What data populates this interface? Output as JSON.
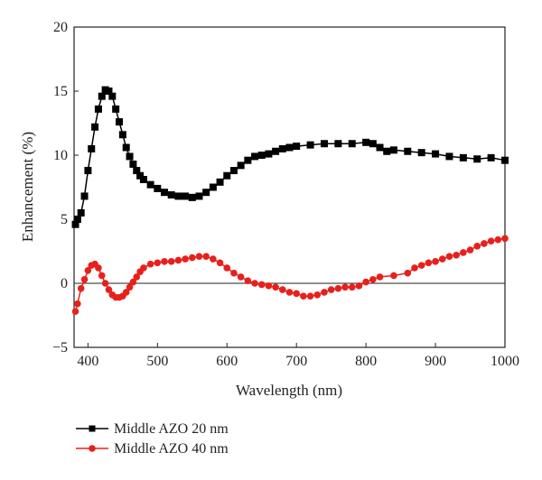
{
  "chart_data": {
    "type": "scatter",
    "xlabel": "Wavelength (nm)",
    "ylabel": "Enhancement (%)",
    "xlim": [
      380,
      1000
    ],
    "ylim": [
      -5,
      20
    ],
    "x_ticks": [
      400,
      500,
      600,
      700,
      800,
      900,
      1000
    ],
    "y_ticks": [
      -5,
      0,
      5,
      10,
      15,
      20
    ],
    "grid": false,
    "reference_line_y": 0,
    "legend_position": "bottom-left, below plot",
    "series": [
      {
        "name": "Middle AZO 20 nm",
        "color": "#000000",
        "marker": "square",
        "points": [
          [
            382,
            4.6
          ],
          [
            385,
            5.0
          ],
          [
            390,
            5.5
          ],
          [
            395,
            6.8
          ],
          [
            400,
            8.8
          ],
          [
            405,
            10.5
          ],
          [
            410,
            12.2
          ],
          [
            415,
            13.6
          ],
          [
            420,
            14.6
          ],
          [
            425,
            15.1
          ],
          [
            430,
            15.0
          ],
          [
            435,
            14.6
          ],
          [
            440,
            13.6
          ],
          [
            445,
            12.6
          ],
          [
            450,
            11.6
          ],
          [
            455,
            10.6
          ],
          [
            460,
            9.9
          ],
          [
            465,
            9.3
          ],
          [
            470,
            8.8
          ],
          [
            475,
            8.4
          ],
          [
            480,
            8.1
          ],
          [
            490,
            7.7
          ],
          [
            500,
            7.4
          ],
          [
            510,
            7.1
          ],
          [
            520,
            6.9
          ],
          [
            530,
            6.8
          ],
          [
            540,
            6.8
          ],
          [
            550,
            6.7
          ],
          [
            560,
            6.8
          ],
          [
            570,
            7.1
          ],
          [
            580,
            7.5
          ],
          [
            590,
            7.9
          ],
          [
            600,
            8.4
          ],
          [
            610,
            8.8
          ],
          [
            620,
            9.2
          ],
          [
            630,
            9.6
          ],
          [
            640,
            9.9
          ],
          [
            650,
            10.0
          ],
          [
            660,
            10.1
          ],
          [
            670,
            10.3
          ],
          [
            680,
            10.5
          ],
          [
            690,
            10.6
          ],
          [
            700,
            10.7
          ],
          [
            720,
            10.8
          ],
          [
            740,
            10.9
          ],
          [
            760,
            10.9
          ],
          [
            780,
            10.9
          ],
          [
            800,
            11.0
          ],
          [
            810,
            10.9
          ],
          [
            820,
            10.6
          ],
          [
            830,
            10.3
          ],
          [
            840,
            10.4
          ],
          [
            860,
            10.3
          ],
          [
            880,
            10.2
          ],
          [
            900,
            10.1
          ],
          [
            920,
            9.9
          ],
          [
            940,
            9.8
          ],
          [
            960,
            9.7
          ],
          [
            980,
            9.8
          ],
          [
            1000,
            9.6
          ]
        ]
      },
      {
        "name": "Middle AZO 40 nm",
        "color": "#e8201c",
        "marker": "circle",
        "points": [
          [
            382,
            -2.2
          ],
          [
            385,
            -1.6
          ],
          [
            390,
            -0.4
          ],
          [
            395,
            0.3
          ],
          [
            400,
            1.0
          ],
          [
            405,
            1.4
          ],
          [
            410,
            1.5
          ],
          [
            415,
            1.2
          ],
          [
            420,
            0.6
          ],
          [
            425,
            0.0
          ],
          [
            430,
            -0.5
          ],
          [
            435,
            -0.9
          ],
          [
            440,
            -1.1
          ],
          [
            445,
            -1.1
          ],
          [
            450,
            -1.0
          ],
          [
            455,
            -0.7
          ],
          [
            460,
            -0.3
          ],
          [
            465,
            0.1
          ],
          [
            470,
            0.5
          ],
          [
            475,
            0.9
          ],
          [
            480,
            1.2
          ],
          [
            490,
            1.5
          ],
          [
            500,
            1.6
          ],
          [
            510,
            1.7
          ],
          [
            520,
            1.7
          ],
          [
            530,
            1.8
          ],
          [
            540,
            1.9
          ],
          [
            550,
            2.0
          ],
          [
            560,
            2.1
          ],
          [
            570,
            2.1
          ],
          [
            580,
            1.9
          ],
          [
            590,
            1.6
          ],
          [
            600,
            1.2
          ],
          [
            610,
            0.8
          ],
          [
            620,
            0.5
          ],
          [
            630,
            0.2
          ],
          [
            640,
            0.0
          ],
          [
            650,
            -0.1
          ],
          [
            660,
            -0.2
          ],
          [
            670,
            -0.3
          ],
          [
            680,
            -0.5
          ],
          [
            690,
            -0.7
          ],
          [
            700,
            -0.8
          ],
          [
            710,
            -1.0
          ],
          [
            720,
            -1.0
          ],
          [
            730,
            -0.9
          ],
          [
            740,
            -0.7
          ],
          [
            750,
            -0.5
          ],
          [
            760,
            -0.4
          ],
          [
            770,
            -0.3
          ],
          [
            780,
            -0.3
          ],
          [
            790,
            -0.2
          ],
          [
            800,
            0.1
          ],
          [
            810,
            0.3
          ],
          [
            820,
            0.5
          ],
          [
            840,
            0.6
          ],
          [
            860,
            0.8
          ],
          [
            870,
            1.2
          ],
          [
            880,
            1.4
          ],
          [
            890,
            1.6
          ],
          [
            900,
            1.7
          ],
          [
            910,
            1.9
          ],
          [
            920,
            2.1
          ],
          [
            930,
            2.2
          ],
          [
            940,
            2.4
          ],
          [
            950,
            2.6
          ],
          [
            960,
            2.9
          ],
          [
            970,
            3.1
          ],
          [
            980,
            3.3
          ],
          [
            990,
            3.4
          ],
          [
            1000,
            3.5
          ]
        ]
      }
    ]
  }
}
